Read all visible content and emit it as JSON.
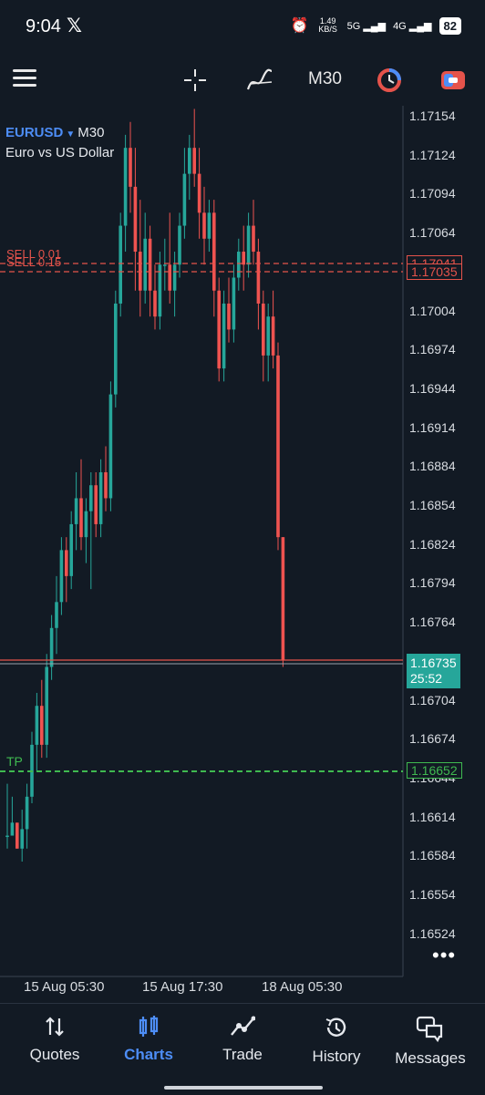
{
  "status_bar": {
    "time": "9:04",
    "x_icon": "x-logo-icon",
    "net_speed": "1.49 KB/S",
    "net1": "4G",
    "net1_sub": "5G",
    "net2": "4G",
    "battery": "82"
  },
  "toolbar": {
    "period": "M30",
    "icons": [
      "menu-icon",
      "crosshair-icon",
      "indicators-icon",
      "timeframe-label",
      "one-click-trading-icon",
      "chart-type-icon"
    ]
  },
  "chart": {
    "symbol": "EURUSD",
    "timeframe": "M30",
    "description": "Euro vs US Dollar",
    "y_ticks": [
      "1.17154",
      "1.17124",
      "1.17094",
      "1.17064",
      "1.17004",
      "1.16974",
      "1.16944",
      "1.16914",
      "1.16884",
      "1.16854",
      "1.16824",
      "1.16794",
      "1.16764",
      "1.16704",
      "1.16674",
      "1.16644",
      "1.16614",
      "1.16584",
      "1.16554",
      "1.16524"
    ],
    "x_ticks": [
      "15 Aug 05:30",
      "15 Aug 17:30",
      "18 Aug 05:30"
    ],
    "sell_label_1": "SELL 0.01",
    "sell_label_2": "SELL 0.15",
    "sell_price_1": "1.17041",
    "sell_price_2": "1.17035",
    "current_price": "1.16735",
    "countdown": "25:52",
    "tp_label": "TP",
    "tp_price": "1.16652",
    "colors": {
      "bull": "#26a69a",
      "bear": "#ef5350",
      "sell_line": "#e5534b",
      "tp_line": "#3fb950",
      "accent": "#4d8df6"
    }
  },
  "chart_data": {
    "type": "candlestick",
    "ylim": [
      1.1651,
      1.1716
    ],
    "candles": [
      [
        1.166,
        1.1664,
        1.1659,
        1.166
      ],
      [
        1.166,
        1.1663,
        1.166,
        1.1661
      ],
      [
        1.1661,
        1.1661,
        1.1659,
        1.1659
      ],
      [
        1.1659,
        1.1662,
        1.1658,
        1.16605
      ],
      [
        1.16605,
        1.1664,
        1.1659,
        1.1663
      ],
      [
        1.1663,
        1.1668,
        1.16625,
        1.1667
      ],
      [
        1.1667,
        1.1671,
        1.1665,
        1.167
      ],
      [
        1.167,
        1.1672,
        1.1666,
        1.1667
      ],
      [
        1.1667,
        1.1674,
        1.1666,
        1.1673
      ],
      [
        1.1673,
        1.1677,
        1.1672,
        1.1676
      ],
      [
        1.1676,
        1.168,
        1.1674,
        1.1678
      ],
      [
        1.1678,
        1.1683,
        1.1677,
        1.1682
      ],
      [
        1.1682,
        1.1683,
        1.1678,
        1.168
      ],
      [
        1.168,
        1.1685,
        1.1679,
        1.1684
      ],
      [
        1.1684,
        1.1688,
        1.1682,
        1.1686
      ],
      [
        1.1686,
        1.1689,
        1.1682,
        1.1683
      ],
      [
        1.1683,
        1.1686,
        1.1681,
        1.1685
      ],
      [
        1.1685,
        1.1688,
        1.1679,
        1.1687
      ],
      [
        1.1687,
        1.1688,
        1.1683,
        1.1684
      ],
      [
        1.1684,
        1.1689,
        1.1683,
        1.1688
      ],
      [
        1.1688,
        1.169,
        1.1685,
        1.1686
      ],
      [
        1.1686,
        1.1695,
        1.1685,
        1.1694
      ],
      [
        1.1694,
        1.1702,
        1.1693,
        1.1701
      ],
      [
        1.1701,
        1.1708,
        1.17,
        1.1707
      ],
      [
        1.1707,
        1.1714,
        1.1705,
        1.1713
      ],
      [
        1.1713,
        1.1715,
        1.1708,
        1.171
      ],
      [
        1.171,
        1.1713,
        1.1702,
        1.1705
      ],
      [
        1.1705,
        1.1709,
        1.17,
        1.1702
      ],
      [
        1.1702,
        1.1708,
        1.1701,
        1.1706
      ],
      [
        1.1706,
        1.1707,
        1.17,
        1.1702
      ],
      [
        1.1702,
        1.1704,
        1.1699,
        1.17
      ],
      [
        1.17,
        1.1705,
        1.1699,
        1.1704
      ],
      [
        1.1704,
        1.1706,
        1.1702,
        1.1704
      ],
      [
        1.1704,
        1.1708,
        1.1701,
        1.1702
      ],
      [
        1.1702,
        1.1705,
        1.17,
        1.1704
      ],
      [
        1.1704,
        1.1708,
        1.1703,
        1.1707
      ],
      [
        1.1707,
        1.1713,
        1.1706,
        1.1711
      ],
      [
        1.1711,
        1.1714,
        1.1709,
        1.1713
      ],
      [
        1.1713,
        1.1716,
        1.171,
        1.1711
      ],
      [
        1.1711,
        1.1713,
        1.1706,
        1.1708
      ],
      [
        1.1708,
        1.171,
        1.1704,
        1.1706
      ],
      [
        1.1706,
        1.1709,
        1.1705,
        1.1708
      ],
      [
        1.1708,
        1.1709,
        1.17,
        1.1702
      ],
      [
        1.1702,
        1.1703,
        1.1695,
        1.1696
      ],
      [
        1.1696,
        1.1702,
        1.1695,
        1.1701
      ],
      [
        1.1701,
        1.1703,
        1.1698,
        1.1699
      ],
      [
        1.1699,
        1.1704,
        1.1698,
        1.1703
      ],
      [
        1.1703,
        1.1706,
        1.1702,
        1.1705
      ],
      [
        1.1705,
        1.1707,
        1.1702,
        1.1704
      ],
      [
        1.1704,
        1.1708,
        1.1703,
        1.1707
      ],
      [
        1.1707,
        1.1709,
        1.1704,
        1.1705
      ],
      [
        1.1705,
        1.1706,
        1.1699,
        1.1701
      ],
      [
        1.1701,
        1.1702,
        1.1695,
        1.1697
      ],
      [
        1.1697,
        1.1701,
        1.1695,
        1.17
      ],
      [
        1.17,
        1.1702,
        1.1696,
        1.1697
      ],
      [
        1.1697,
        1.1698,
        1.1682,
        1.1683
      ],
      [
        1.1683,
        1.1683,
        1.1673,
        1.16735
      ]
    ]
  },
  "nav": {
    "items": [
      "Quotes",
      "Charts",
      "Trade",
      "History",
      "Messages"
    ],
    "active": "Charts"
  }
}
